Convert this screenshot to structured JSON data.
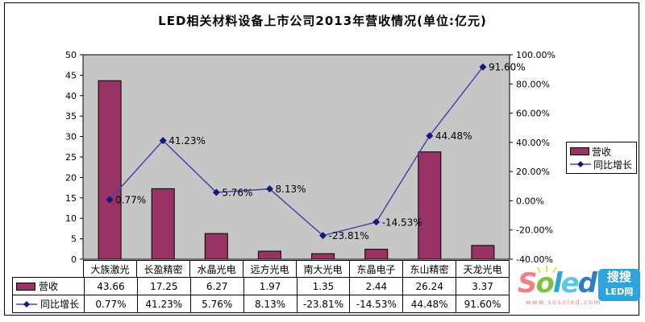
{
  "title": "LED相关材料设备上市公司2013年营收情况(单位:亿元)",
  "chart_data": {
    "type": "combo (bar + line)",
    "title": "LED相关材料设备上市公司2013年营收情况(单位:亿元)",
    "categories": [
      "大族激光",
      "长盈精密",
      "水晶光电",
      "远方光电",
      "南大光电",
      "东晶电子",
      "东山精密",
      "天龙光电"
    ],
    "series": [
      {
        "name": "营收",
        "type": "bar",
        "axis": "left",
        "color": "#993366",
        "values": [
          43.66,
          17.25,
          6.27,
          1.97,
          1.35,
          2.44,
          26.24,
          3.37
        ]
      },
      {
        "name": "同比增长",
        "type": "line",
        "axis": "right",
        "color": "#4747AB",
        "marker_color": "#16167F",
        "marker": "diamond",
        "values": [
          0.77,
          41.23,
          5.76,
          8.13,
          -23.81,
          -14.53,
          44.48,
          91.6
        ],
        "point_labels": [
          "0.77%",
          "41.23%",
          "5.76%",
          "8.13%",
          "-23.81%",
          "-14.53%",
          "44.48%",
          "91.60%"
        ]
      }
    ],
    "left_axis": {
      "min": 0,
      "max": 50,
      "step": 5,
      "tick_labels": [
        "0",
        "5",
        "10",
        "15",
        "20",
        "25",
        "30",
        "35",
        "40",
        "45",
        "50"
      ]
    },
    "right_axis": {
      "min": -40,
      "max": 100,
      "step": 20,
      "tick_labels": [
        "-40.00%",
        "-20.00%",
        "0.00%",
        "20.00%",
        "40.00%",
        "60.00%",
        "80.00%",
        "100.00%"
      ]
    },
    "plot_bg": "#C6C6C6",
    "grid": false,
    "legend_position": "right"
  },
  "legend": {
    "items": [
      {
        "label": "营收"
      },
      {
        "label": "同比增长"
      }
    ]
  },
  "table": {
    "columns": [
      "大族激光",
      "长盈精密",
      "水晶光电",
      "远方光电",
      "南大光电",
      "东晶电子",
      "东山精密",
      "天龙光电"
    ],
    "rows": [
      {
        "label": "营收",
        "cells": [
          "43.66",
          "17.25",
          "6.27",
          "1.97",
          "1.35",
          "2.44",
          "26.24",
          "3.37"
        ]
      },
      {
        "label": "同比增长",
        "cells": [
          "0.77%",
          "41.23%",
          "5.76%",
          "8.13%",
          "-23.81%",
          "-14.53%",
          "44.48%",
          "91.60%"
        ]
      }
    ]
  },
  "watermark": {
    "logo_letters": [
      {
        "ch": "S",
        "color": "#F28083"
      },
      {
        "ch": "o",
        "color": "#7FC241"
      },
      {
        "ch": "l",
        "color": "#2FA3DC"
      },
      {
        "ch": "e",
        "color": "#5CC6E8"
      },
      {
        "ch": "d",
        "color": "#2F7EC1"
      }
    ],
    "box_line1": "搜搜",
    "box_line2": "LED网",
    "url": "www.sosoled.com"
  }
}
